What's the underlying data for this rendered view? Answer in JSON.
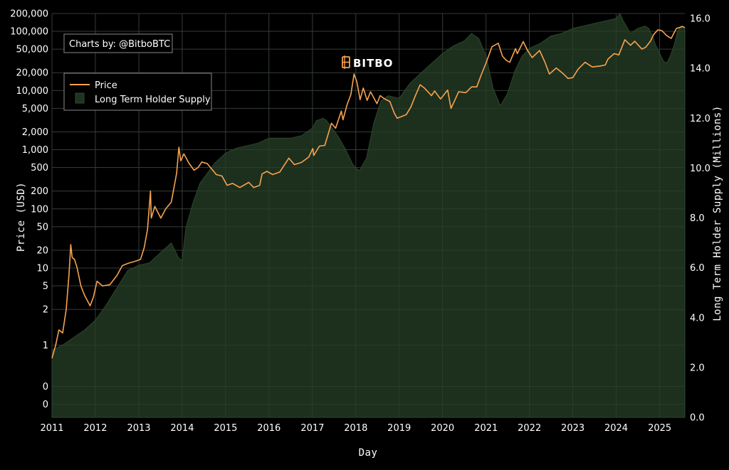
{
  "chart_data": {
    "type": "line",
    "title": "",
    "xlabel": "Day",
    "ylabel": "Price (USD)",
    "y2label": "Long Term Holder Supply (Millions)",
    "watermark": "BITBO",
    "credit": "Charts by: @BitboBTC",
    "legend_position": "top-left",
    "grid": true,
    "colors": {
      "background": "#000000",
      "price_line": "#f7a350",
      "supply_fill": "#1f3420",
      "supply_edge": "#2b472b",
      "grid": "#333333",
      "legend_border": "#888888"
    },
    "x_ticks": [
      "2011",
      "2012",
      "2013",
      "2014",
      "2015",
      "2016",
      "2017",
      "2018",
      "2019",
      "2020",
      "2021",
      "2022",
      "2023",
      "2024",
      "2025"
    ],
    "y_ticks": [
      "0",
      "0",
      "1",
      "2",
      "5",
      "10",
      "20",
      "50",
      "100",
      "200",
      "500",
      "1,000",
      "2,000",
      "5,000",
      "10,000",
      "20,000",
      "50,000",
      "100,000",
      "200,000"
    ],
    "y_tick_values": [
      0.05,
      0.1,
      0.5,
      2,
      5,
      10,
      20,
      50,
      100,
      200,
      500,
      1000,
      2000,
      5000,
      10000,
      20000,
      50000,
      100000,
      200000
    ],
    "y2_ticks": [
      "0.0",
      "2.0",
      "4.0",
      "6.0",
      "8.0",
      "10.0",
      "12.0",
      "14.0",
      "16.0"
    ],
    "y2_tick_values": [
      0,
      2,
      4,
      6,
      8,
      10,
      12,
      14,
      16
    ],
    "ylim": [
      0.03,
      200000
    ],
    "y2lim": [
      0,
      16.2
    ],
    "xlim": [
      "2011-01-01",
      "2025-08-01"
    ],
    "series": [
      {
        "name": "Price",
        "type": "line",
        "x": [
          "2011-01-01",
          "2011-02-01",
          "2011-03-01",
          "2011-04-01",
          "2011-05-01",
          "2011-05-25",
          "2011-06-08",
          "2011-06-20",
          "2011-07-10",
          "2011-08-01",
          "2011-09-01",
          "2011-10-01",
          "2011-11-18",
          "2011-12-15",
          "2012-01-15",
          "2012-03-01",
          "2012-05-01",
          "2012-07-01",
          "2012-08-15",
          "2012-10-01",
          "2012-12-01",
          "2013-01-15",
          "2013-02-15",
          "2013-03-15",
          "2013-04-09",
          "2013-04-16",
          "2013-05-15",
          "2013-07-05",
          "2013-08-15",
          "2013-10-01",
          "2013-11-15",
          "2013-12-04",
          "2013-12-20",
          "2014-01-15",
          "2014-02-25",
          "2014-04-10",
          "2014-05-15",
          "2014-06-15",
          "2014-08-01",
          "2014-09-15",
          "2014-10-15",
          "2014-12-01",
          "2015-01-14",
          "2015-03-01",
          "2015-05-01",
          "2015-07-15",
          "2015-08-25",
          "2015-10-15",
          "2015-11-04",
          "2015-12-15",
          "2016-02-01",
          "2016-04-01",
          "2016-06-16",
          "2016-08-02",
          "2016-10-01",
          "2016-12-01",
          "2017-01-04",
          "2017-01-12",
          "2017-03-01",
          "2017-04-15",
          "2017-06-10",
          "2017-07-15",
          "2017-09-01",
          "2017-09-15",
          "2017-10-20",
          "2017-11-20",
          "2017-12-17",
          "2018-01-10",
          "2018-02-06",
          "2018-03-05",
          "2018-04-06",
          "2018-05-05",
          "2018-06-28",
          "2018-07-25",
          "2018-09-01",
          "2018-10-15",
          "2018-11-20",
          "2018-12-15",
          "2019-01-15",
          "2019-03-01",
          "2019-04-10",
          "2019-05-15",
          "2019-06-26",
          "2019-08-01",
          "2019-09-30",
          "2019-10-26",
          "2019-12-15",
          "2020-02-13",
          "2020-03-12",
          "2020-04-15",
          "2020-05-15",
          "2020-07-15",
          "2020-09-01",
          "2020-10-15",
          "2020-11-20",
          "2020-12-31",
          "2021-02-20",
          "2021-04-14",
          "2021-05-19",
          "2021-06-22",
          "2021-07-20",
          "2021-09-06",
          "2021-09-21",
          "2021-11-10",
          "2021-12-15",
          "2022-01-24",
          "2022-03-28",
          "2022-05-12",
          "2022-06-18",
          "2022-08-15",
          "2022-10-15",
          "2022-11-21",
          "2023-01-01",
          "2023-02-15",
          "2023-04-14",
          "2023-06-15",
          "2023-08-20",
          "2023-10-01",
          "2023-10-24",
          "2023-12-15",
          "2024-01-23",
          "2024-03-14",
          "2024-05-01",
          "2024-06-05",
          "2024-08-05",
          "2024-09-06",
          "2024-10-15",
          "2024-11-12",
          "2024-12-17",
          "2025-01-20",
          "2025-02-28",
          "2025-04-08",
          "2025-05-22",
          "2025-07-14",
          "2025-08-01"
        ],
        "values": [
          0.3,
          0.5,
          0.9,
          0.8,
          2,
          8,
          25,
          15,
          14,
          10,
          5,
          3.5,
          2.3,
          3.2,
          6,
          5,
          5.2,
          7.5,
          11,
          12,
          13,
          14,
          22,
          45,
          200,
          70,
          110,
          70,
          100,
          130,
          400,
          1100,
          650,
          850,
          600,
          450,
          500,
          620,
          580,
          450,
          380,
          360,
          250,
          270,
          230,
          280,
          230,
          250,
          390,
          430,
          380,
          420,
          720,
          560,
          610,
          750,
          1050,
          800,
          1150,
          1180,
          2800,
          2300,
          4500,
          3200,
          5800,
          8500,
          19000,
          14000,
          7000,
          11000,
          6800,
          9500,
          6000,
          8200,
          7200,
          6500,
          4200,
          3400,
          3600,
          3900,
          5300,
          8000,
          12500,
          11000,
          8200,
          9800,
          7200,
          10200,
          5000,
          7000,
          9500,
          9200,
          11500,
          11500,
          18000,
          29000,
          55000,
          63000,
          38000,
          32000,
          30000,
          51000,
          42000,
          67000,
          48000,
          36000,
          47500,
          30000,
          19000,
          24000,
          19000,
          16000,
          16500,
          23000,
          30000,
          25000,
          26000,
          27000,
          34000,
          42000,
          40000,
          72000,
          58000,
          68000,
          50000,
          54000,
          68000,
          89000,
          106000,
          103000,
          85000,
          76000,
          112000,
          121000,
          115000
        ]
      },
      {
        "name": "Long Term Holder Supply",
        "type": "area",
        "x": [
          "2011-01-01",
          "2011-04-01",
          "2011-07-01",
          "2011-10-01",
          "2012-01-01",
          "2012-04-01",
          "2012-07-01",
          "2012-10-01",
          "2013-01-01",
          "2013-04-01",
          "2013-07-01",
          "2013-10-01",
          "2013-12-01",
          "2014-01-01",
          "2014-02-01",
          "2014-04-01",
          "2014-06-01",
          "2014-08-01",
          "2014-10-01",
          "2015-01-01",
          "2015-04-01",
          "2015-07-01",
          "2015-10-01",
          "2016-01-01",
          "2016-04-01",
          "2016-07-01",
          "2016-10-01",
          "2017-01-01",
          "2017-02-01",
          "2017-04-01",
          "2017-05-01",
          "2017-06-01",
          "2017-08-01",
          "2017-10-01",
          "2017-11-01",
          "2017-12-01",
          "2018-01-01",
          "2018-02-01",
          "2018-04-01",
          "2018-06-01",
          "2018-08-01",
          "2018-10-01",
          "2019-01-01",
          "2019-04-01",
          "2019-07-01",
          "2019-10-01",
          "2020-01-01",
          "2020-04-01",
          "2020-07-01",
          "2020-09-01",
          "2020-11-01",
          "2021-01-01",
          "2021-03-01",
          "2021-05-01",
          "2021-07-01",
          "2021-09-01",
          "2021-11-01",
          "2022-01-01",
          "2022-04-01",
          "2022-07-01",
          "2022-10-01",
          "2023-01-01",
          "2023-04-01",
          "2023-07-01",
          "2023-10-01",
          "2024-01-01",
          "2024-02-01",
          "2024-03-01",
          "2024-05-01",
          "2024-07-01",
          "2024-09-01",
          "2024-10-01",
          "2024-11-01",
          "2024-12-01",
          "2025-01-01",
          "2025-02-01",
          "2025-03-01",
          "2025-04-01",
          "2025-05-01",
          "2025-06-01",
          "2025-07-01",
          "2025-08-01"
        ],
        "values": [
          2.7,
          2.9,
          3.2,
          3.5,
          3.9,
          4.5,
          5.2,
          5.9,
          6.1,
          6.2,
          6.6,
          7.0,
          6.4,
          6.3,
          7.6,
          8.6,
          9.4,
          9.8,
          10.2,
          10.6,
          10.8,
          10.9,
          11.0,
          11.2,
          11.2,
          11.2,
          11.3,
          11.6,
          11.9,
          12.0,
          11.9,
          11.7,
          11.3,
          10.8,
          10.5,
          10.2,
          10.0,
          9.9,
          10.4,
          11.8,
          12.7,
          12.9,
          12.8,
          13.4,
          13.8,
          14.2,
          14.6,
          14.9,
          15.1,
          15.4,
          15.2,
          14.5,
          13.2,
          12.5,
          13.0,
          13.9,
          14.5,
          14.8,
          15.0,
          15.3,
          15.4,
          15.6,
          15.7,
          15.8,
          15.9,
          16.0,
          16.2,
          15.9,
          15.4,
          15.6,
          15.7,
          15.6,
          15.3,
          14.9,
          14.6,
          14.3,
          14.2,
          14.5,
          14.9,
          15.5,
          15.7,
          15.6
        ]
      }
    ]
  }
}
